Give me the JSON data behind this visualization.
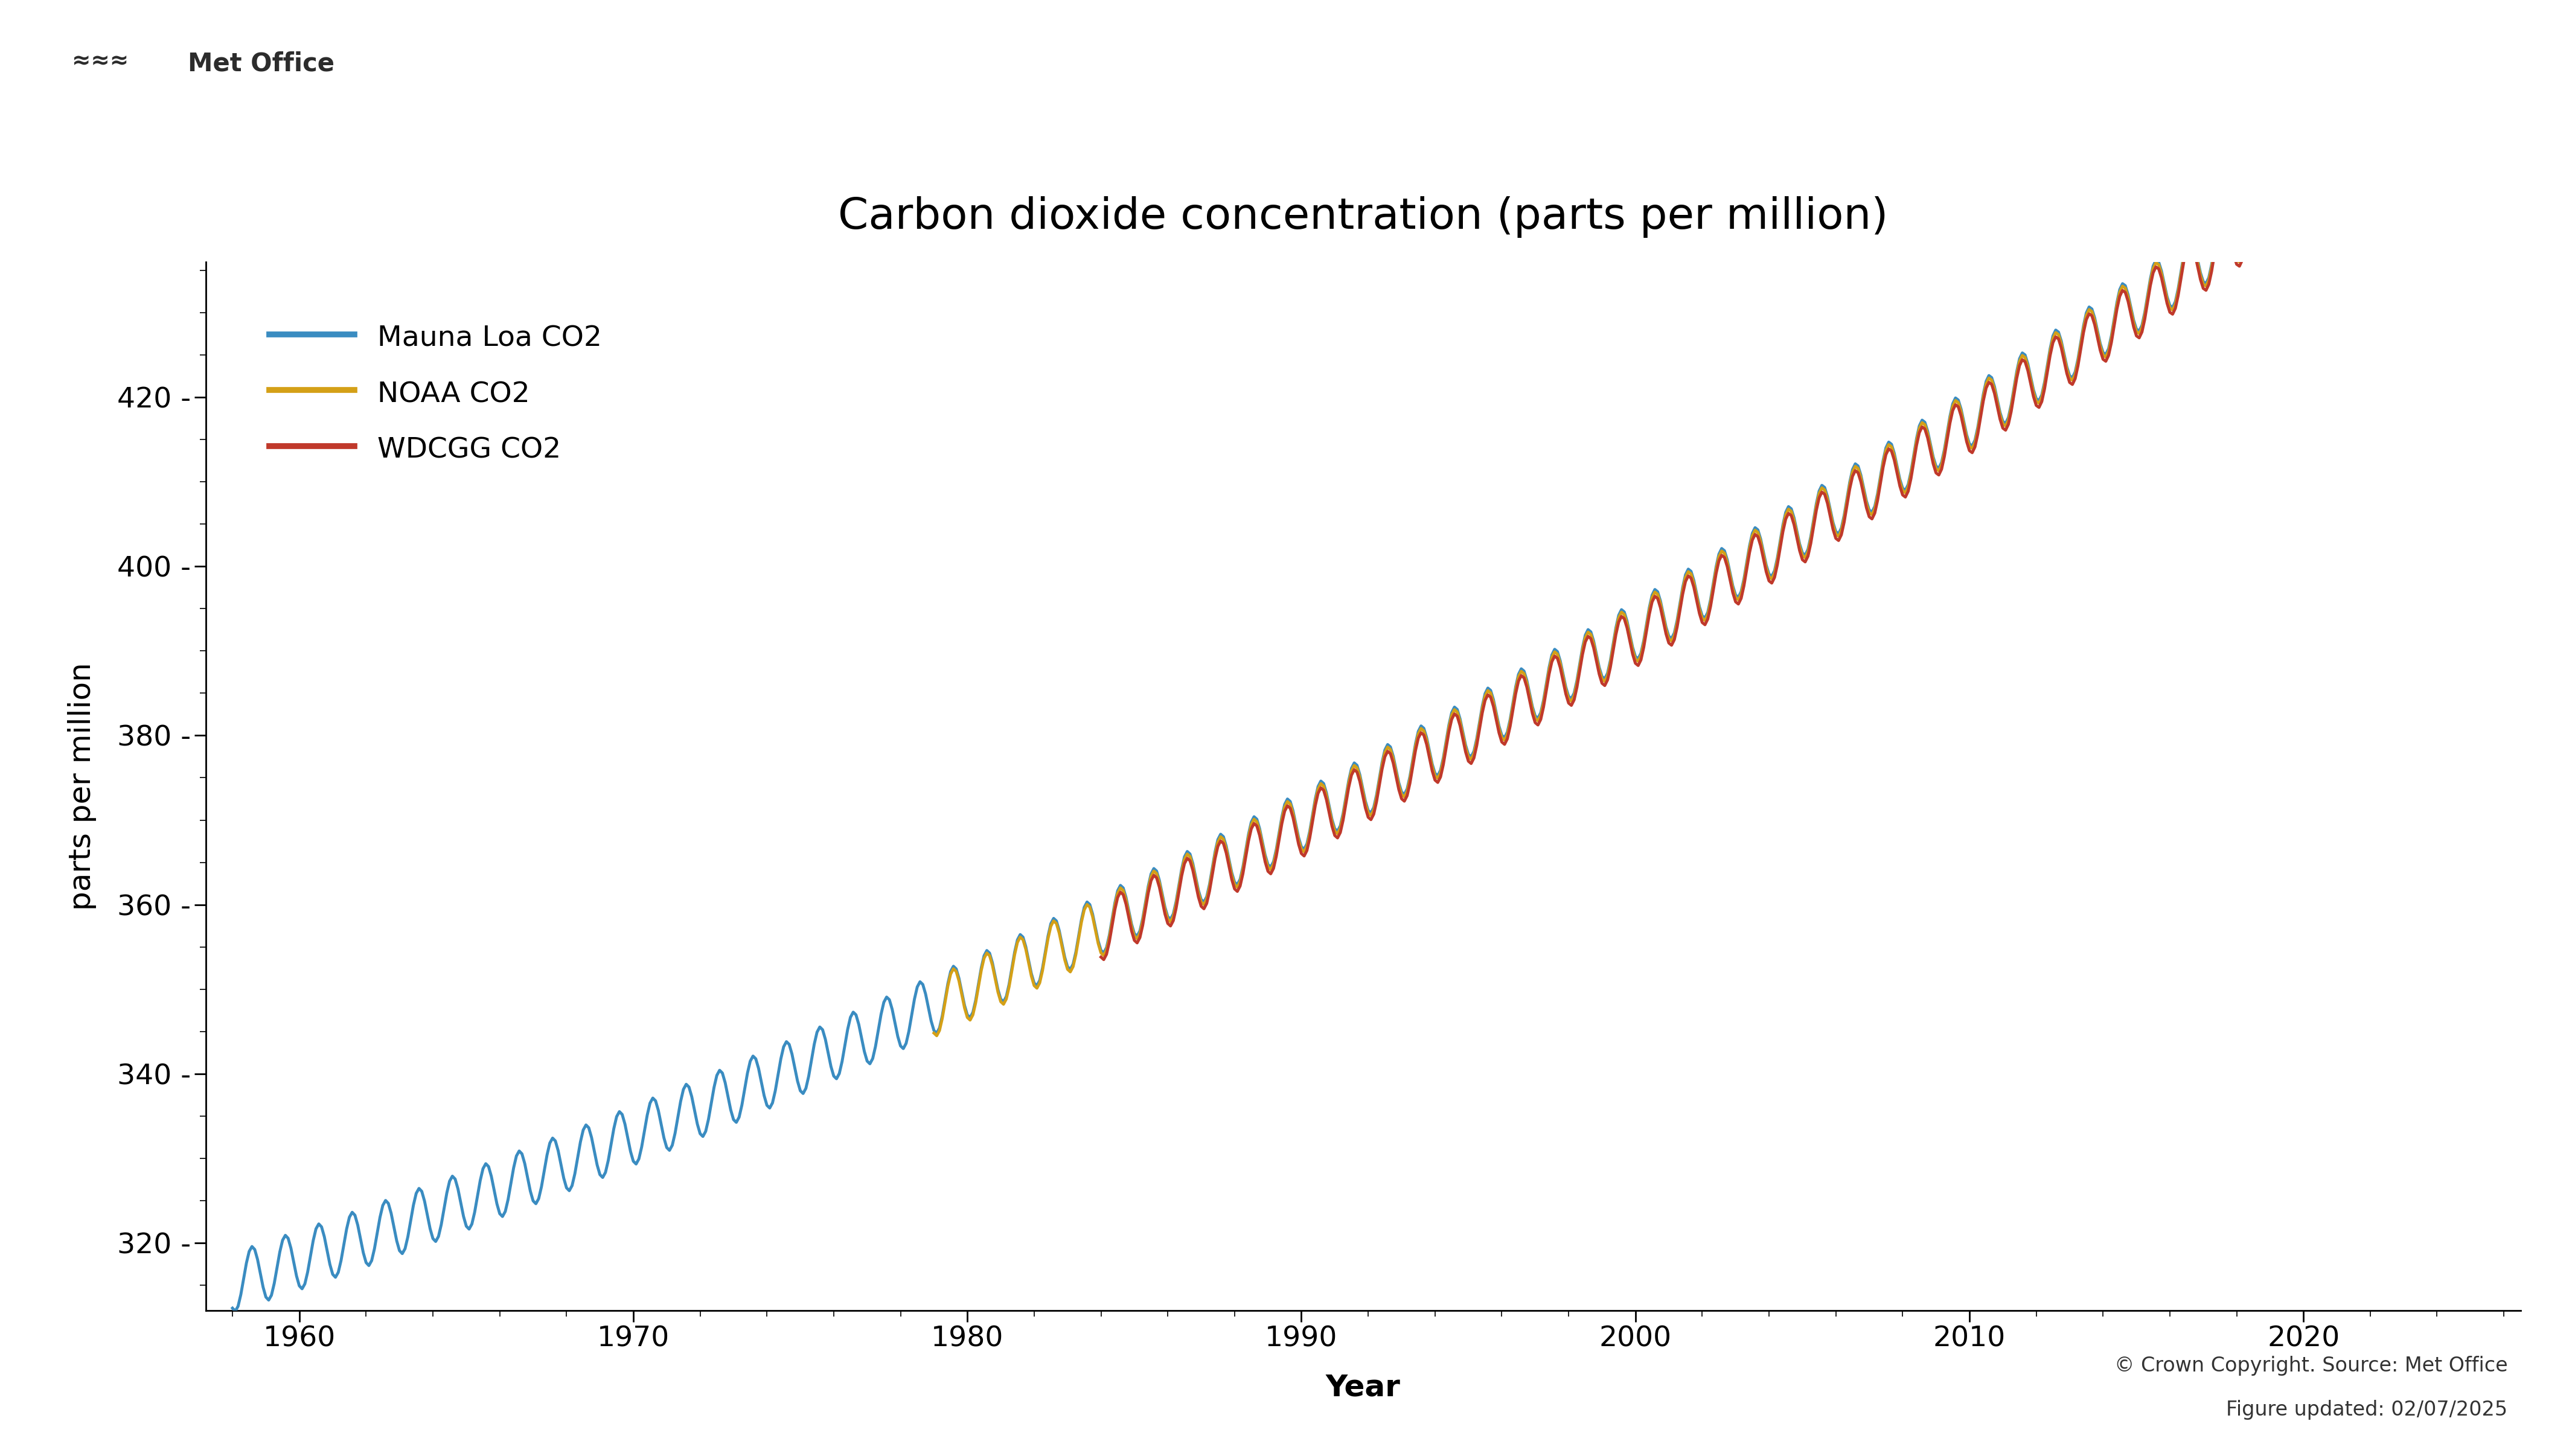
{
  "title": "Carbon dioxide concentration (parts per million)",
  "ylabel": "parts per million",
  "xlabel": "Year",
  "copyright_text": "© Crown Copyright. Source: Met Office",
  "updated_text": "Figure updated: 02/07/2025",
  "mauna_loa_color": "#3a8cc1",
  "noaa_color": "#D4A017",
  "wdcgg_color": "#c0392b",
  "mauna_loa_label": "Mauna Loa CO2",
  "noaa_label": "NOAA CO2",
  "wdcgg_label": "WDCGG CO2",
  "line_width": 3.5,
  "ylim": [
    312,
    436
  ],
  "xlim_start": 1957.2,
  "xlim_end": 2026.5,
  "yticks": [
    320,
    340,
    360,
    380,
    400,
    420
  ],
  "xticks": [
    1960,
    1970,
    1980,
    1990,
    2000,
    2010,
    2020
  ],
  "title_fontsize": 52,
  "tick_fontsize": 34,
  "label_fontsize": 36,
  "legend_fontsize": 34,
  "copyright_fontsize": 24,
  "logo_fontsize": 30,
  "background_color": "#ffffff",
  "ml_start_year": 1958.0,
  "ml_end_year": 2025.5,
  "noaa_start_year": 1979.0,
  "noaa_end_year": 2025.25,
  "wdcgg_start_year": 1984.0,
  "wdcgg_end_year": 2024.9
}
